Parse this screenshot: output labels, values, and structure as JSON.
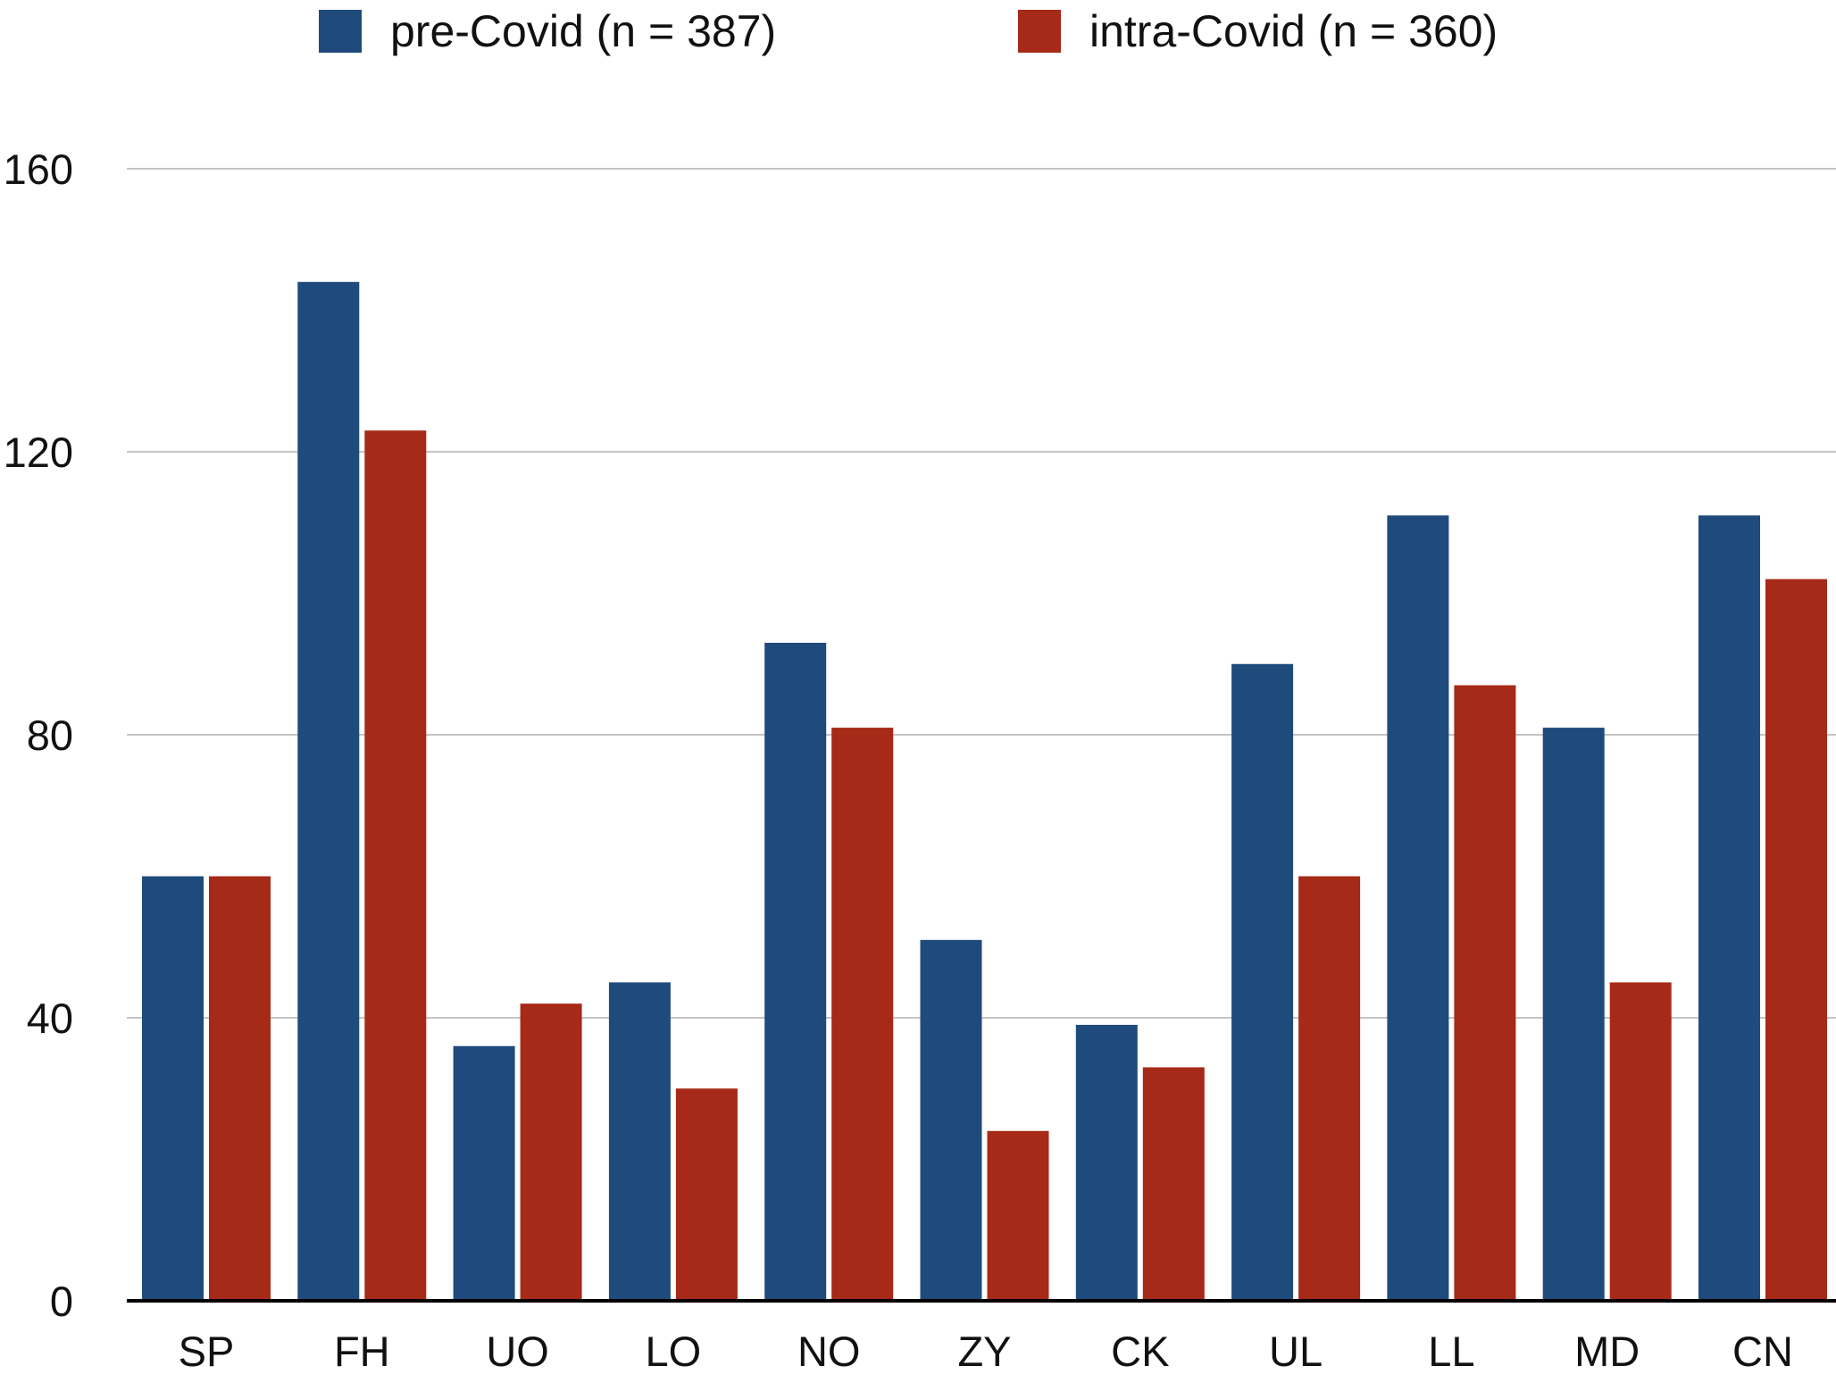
{
  "chart_data": {
    "type": "bar",
    "title": "",
    "xlabel": "",
    "ylabel": "",
    "ylim": [
      0,
      160
    ],
    "yticks": [
      0,
      40,
      80,
      120,
      160
    ],
    "grid": true,
    "legend_position": "top",
    "categories": [
      "SP",
      "FH",
      "UO",
      "LO",
      "NO",
      "ZY",
      "CK",
      "UL",
      "LL",
      "MD",
      "CN"
    ],
    "series": [
      {
        "name": "pre-Covid (n = 387)",
        "color": "#1f4b7c",
        "values": [
          60,
          144,
          36,
          45,
          93,
          51,
          39,
          90,
          111,
          81,
          111
        ]
      },
      {
        "name": "intra-Covid (n = 360)",
        "color": "#a62a17",
        "values": [
          60,
          123,
          42,
          30,
          81,
          24,
          33,
          60,
          87,
          45,
          102
        ]
      }
    ]
  }
}
